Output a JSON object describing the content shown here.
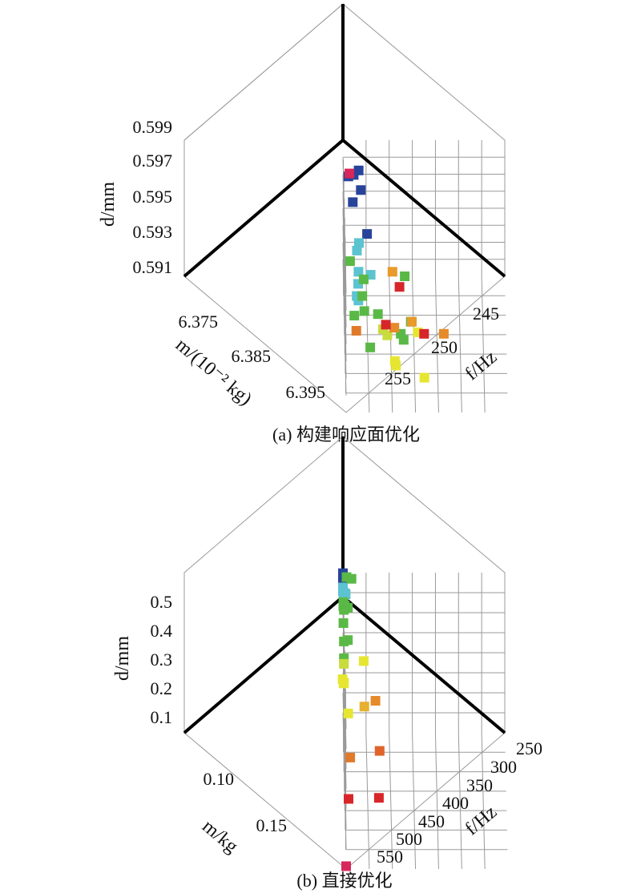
{
  "chart_data": [
    {
      "type": "scatter",
      "caption": "(a) 构建响应面优化",
      "zlabel": "d/mm",
      "mlabel": "m/(10⁻² kg)",
      "flabel": "f/Hz",
      "z_ticks": [
        "0.599",
        "0.597",
        "0.595",
        "0.593",
        "0.591"
      ],
      "m_ticks": [
        "6.375",
        "6.385",
        "6.395"
      ],
      "f_ticks": [
        "245",
        "250",
        "255"
      ],
      "z_range": [
        0.591,
        0.6
      ],
      "m_range": [
        6.37,
        6.4
      ],
      "f_range": [
        242,
        258
      ],
      "grid": true,
      "colormap": "jet (blue → cyan → green → yellow → orange → red)",
      "points": [
        {
          "m": 6.376,
          "f": 243.0,
          "d": 0.5995,
          "color": "#27449a"
        },
        {
          "m": 6.375,
          "f": 243.5,
          "d": 0.5995,
          "color": "#27449a"
        },
        {
          "m": 6.374,
          "f": 242.5,
          "d": 0.5988,
          "color": "#27449a"
        },
        {
          "m": 6.376,
          "f": 243.7,
          "d": 0.5985,
          "color": "#27449a"
        },
        {
          "m": 6.377,
          "f": 242.9,
          "d": 0.598,
          "color": "#27449a"
        },
        {
          "m": 6.378,
          "f": 244.3,
          "d": 0.5962,
          "color": "#27449a"
        },
        {
          "m": 6.378,
          "f": 243.5,
          "d": 0.5956,
          "color": "#5cc3d0"
        },
        {
          "m": 6.378,
          "f": 243.3,
          "d": 0.5951,
          "color": "#5cc3d0"
        },
        {
          "m": 6.383,
          "f": 243.4,
          "d": 0.5952,
          "color": "#5cc3d0"
        },
        {
          "m": 6.382,
          "f": 243.4,
          "d": 0.593,
          "color": "#5cc3d0"
        },
        {
          "m": 6.38,
          "f": 243.4,
          "d": 0.5935,
          "color": "#5cc3d0"
        },
        {
          "m": 6.383,
          "f": 244.6,
          "d": 0.595,
          "color": "#5cc3d0"
        },
        {
          "m": 6.376,
          "f": 243.3,
          "d": 0.5915,
          "color": "#5cc3d0"
        },
        {
          "m": 6.38,
          "f": 242.6,
          "d": 0.595,
          "color": "#5ab946"
        },
        {
          "m": 6.384,
          "f": 243.9,
          "d": 0.595,
          "color": "#5ab946"
        },
        {
          "m": 6.381,
          "f": 243.8,
          "d": 0.593,
          "color": "#5ab946"
        },
        {
          "m": 6.382,
          "f": 243.0,
          "d": 0.592,
          "color": "#5ab946"
        },
        {
          "m": 6.381,
          "f": 244.0,
          "d": 0.592,
          "color": "#5ab946"
        },
        {
          "m": 6.385,
          "f": 245.3,
          "d": 0.593,
          "color": "#5ab946"
        },
        {
          "m": 6.38,
          "f": 248.0,
          "d": 0.594,
          "color": "#5ab946"
        },
        {
          "m": 6.389,
          "f": 244.5,
          "d": 0.592,
          "color": "#5ab946"
        },
        {
          "m": 6.391,
          "f": 247.5,
          "d": 0.5935,
          "color": "#5ab946"
        },
        {
          "m": 6.39,
          "f": 248.5,
          "d": 0.594,
          "color": "#5ab946"
        },
        {
          "m": 6.389,
          "f": 247.8,
          "d": 0.5925,
          "color": "#5ab946"
        },
        {
          "m": 6.385,
          "f": 245.8,
          "d": 0.592,
          "color": "#c8dc3c"
        },
        {
          "m": 6.388,
          "f": 246.2,
          "d": 0.5925,
          "color": "#c8dc3c"
        },
        {
          "m": 6.393,
          "f": 247.0,
          "d": 0.592,
          "color": "#e6e632"
        },
        {
          "m": 6.392,
          "f": 246.9,
          "d": 0.592,
          "color": "#e6e632"
        },
        {
          "m": 6.394,
          "f": 249.8,
          "d": 0.5915,
          "color": "#e6e632"
        },
        {
          "m": 6.389,
          "f": 249.2,
          "d": 0.593,
          "color": "#e6e632"
        },
        {
          "m": 6.379,
          "f": 246.8,
          "d": 0.594,
          "color": "#e89a2a"
        },
        {
          "m": 6.39,
          "f": 248.6,
          "d": 0.594,
          "color": "#e89a2a"
        },
        {
          "m": 6.378,
          "f": 247.0,
          "d": 0.59,
          "color": "#e68a2a"
        },
        {
          "m": 6.386,
          "f": 251.8,
          "d": 0.592,
          "color": "#e68a2a"
        },
        {
          "m": 6.382,
          "f": 243.2,
          "d": 0.591,
          "color": "#e07a2a"
        },
        {
          "m": 6.379,
          "f": 247.5,
          "d": 0.593,
          "color": "#d7262a"
        },
        {
          "m": 6.384,
          "f": 246.1,
          "d": 0.592,
          "color": "#d7262a"
        },
        {
          "m": 6.391,
          "f": 249.8,
          "d": 0.5935,
          "color": "#d7262a"
        },
        {
          "m": 6.374,
          "f": 242.6,
          "d": 0.599,
          "color": "#d7265a"
        }
      ]
    },
    {
      "type": "scatter",
      "caption": "(b) 直接优化",
      "zlabel": "d/mm",
      "mlabel": "m/kg",
      "flabel": "f/Hz",
      "z_ticks": [
        "0.5",
        "0.4",
        "0.3",
        "0.2",
        "0.1"
      ],
      "m_ticks": [
        "0.10",
        "0.15"
      ],
      "f_ticks": [
        "250",
        "300",
        "350",
        "400",
        "450",
        "500",
        "550"
      ],
      "z_range": [
        0.05,
        0.62
      ],
      "m_range": [
        0.075,
        0.175
      ],
      "f_range": [
        220,
        580
      ],
      "grid": true,
      "colormap": "jet (blue → cyan → green → yellow → orange → red)",
      "points": [
        {
          "m": 0.075,
          "f": 220,
          "d": 0.618,
          "color": "#27449a"
        },
        {
          "m": 0.075,
          "f": 220,
          "d": 0.608,
          "color": "#27449a"
        },
        {
          "m": 0.075,
          "f": 220,
          "d": 0.598,
          "color": "#27449a"
        },
        {
          "m": 0.076,
          "f": 220,
          "d": 0.58,
          "color": "#27449a"
        },
        {
          "m": 0.076,
          "f": 220,
          "d": 0.572,
          "color": "#5cc3d0"
        },
        {
          "m": 0.076,
          "f": 220,
          "d": 0.56,
          "color": "#5cc3d0"
        },
        {
          "m": 0.076,
          "f": 221,
          "d": 0.552,
          "color": "#5cc3d0"
        },
        {
          "m": 0.076,
          "f": 224,
          "d": 0.552,
          "color": "#5cc3d0"
        },
        {
          "m": 0.076,
          "f": 222,
          "d": 0.545,
          "color": "#5cc3d0"
        },
        {
          "m": 0.076,
          "f": 226,
          "d": 0.548,
          "color": "#5cc3d0"
        },
        {
          "m": 0.075,
          "f": 228,
          "d": 0.604,
          "color": "#5ab946"
        },
        {
          "m": 0.075,
          "f": 239,
          "d": 0.598,
          "color": "#5ab946"
        },
        {
          "m": 0.076,
          "f": 221,
          "d": 0.52,
          "color": "#5ab946"
        },
        {
          "m": 0.077,
          "f": 221,
          "d": 0.515,
          "color": "#5ab946"
        },
        {
          "m": 0.077,
          "f": 224,
          "d": 0.512,
          "color": "#5ab946"
        },
        {
          "m": 0.077,
          "f": 221,
          "d": 0.51,
          "color": "#5ab946"
        },
        {
          "m": 0.078,
          "f": 222,
          "d": 0.502,
          "color": "#5ab946"
        },
        {
          "m": 0.076,
          "f": 231,
          "d": 0.5,
          "color": "#5ab946"
        },
        {
          "m": 0.077,
          "f": 221,
          "d": 0.45,
          "color": "#5ab946"
        },
        {
          "m": 0.076,
          "f": 222,
          "d": 0.38,
          "color": "#5ab946"
        },
        {
          "m": 0.076,
          "f": 231,
          "d": 0.385,
          "color": "#5ab946"
        },
        {
          "m": 0.078,
          "f": 222,
          "d": 0.33,
          "color": "#5ab946"
        },
        {
          "m": 0.078,
          "f": 222,
          "d": 0.31,
          "color": "#c8dc3c"
        },
        {
          "m": 0.078,
          "f": 266,
          "d": 0.32,
          "color": "#e6e632"
        },
        {
          "m": 0.08,
          "f": 219,
          "d": 0.265,
          "color": "#e6e632"
        },
        {
          "m": 0.081,
          "f": 221,
          "d": 0.255,
          "color": "#e6e632"
        },
        {
          "m": 0.079,
          "f": 222,
          "d": 0.248,
          "color": "#e6e632"
        },
        {
          "m": 0.1,
          "f": 230,
          "d": 0.24,
          "color": "#e6e632"
        },
        {
          "m": 0.098,
          "f": 266,
          "d": 0.255,
          "color": "#e8b030"
        },
        {
          "m": 0.081,
          "f": 292,
          "d": 0.193,
          "color": "#e68a2a"
        },
        {
          "m": 0.12,
          "f": 233,
          "d": 0.18,
          "color": "#e07a2a"
        },
        {
          "m": 0.111,
          "f": 299,
          "d": 0.16,
          "color": "#e0642a"
        },
        {
          "m": 0.138,
          "f": 228,
          "d": 0.12,
          "color": "#d7262a"
        },
        {
          "m": 0.131,
          "f": 296,
          "d": 0.09,
          "color": "#d7262a"
        },
        {
          "m": 0.175,
          "f": 220,
          "d": 0.06,
          "color": "#d7265a"
        }
      ]
    }
  ]
}
